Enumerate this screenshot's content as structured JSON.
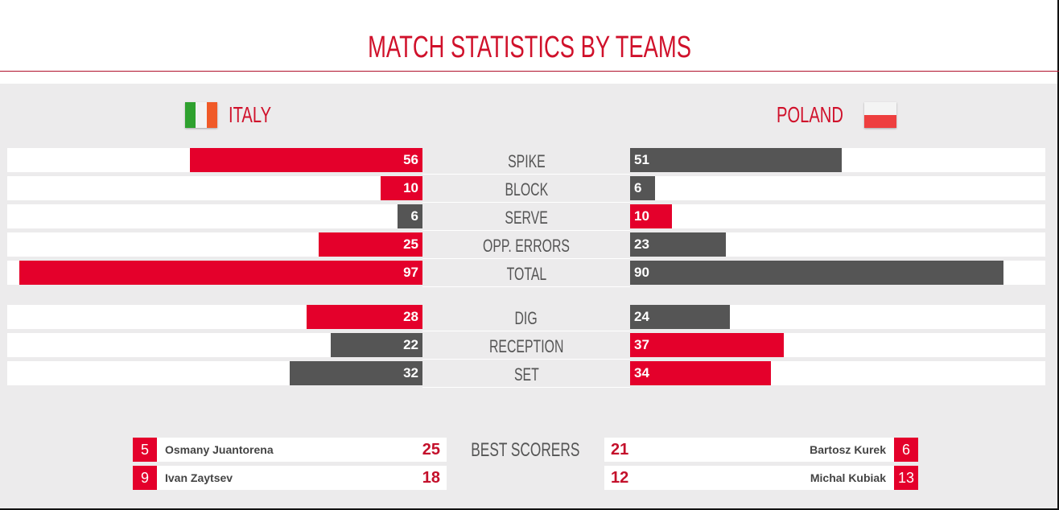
{
  "title": "MATCH STATISTICS BY TEAMS",
  "colors": {
    "red": "#e4002b",
    "dark": "#555555"
  },
  "teams": {
    "home": {
      "name": "ITALY",
      "flag": "italy-flag"
    },
    "away": {
      "name": "POLAND",
      "flag": "poland-flag"
    }
  },
  "stats": [
    {
      "label": "SPIKE",
      "home": 56,
      "away": 51
    },
    {
      "label": "BLOCK",
      "home": 10,
      "away": 6
    },
    {
      "label": "SERVE",
      "home": 6,
      "away": 10
    },
    {
      "label": "OPP. ERRORS",
      "home": 25,
      "away": 23
    },
    {
      "label": "TOTAL",
      "home": 97,
      "away": 90
    },
    {
      "label": "DIG",
      "home": 28,
      "away": 24
    },
    {
      "label": "RECEPTION",
      "home": 22,
      "away": 37
    },
    {
      "label": "SET",
      "home": 32,
      "away": 34
    }
  ],
  "best_scorers": {
    "label": "BEST SCORERS",
    "home": [
      {
        "number": "5",
        "name": "Osmany Juantorena",
        "points": "25"
      },
      {
        "number": "9",
        "name": "Ivan Zaytsev",
        "points": "18"
      }
    ],
    "away": [
      {
        "number": "6",
        "name": "Bartosz Kurek",
        "points": "21"
      },
      {
        "number": "13",
        "name": "Michal Kubiak",
        "points": "12"
      }
    ]
  }
}
